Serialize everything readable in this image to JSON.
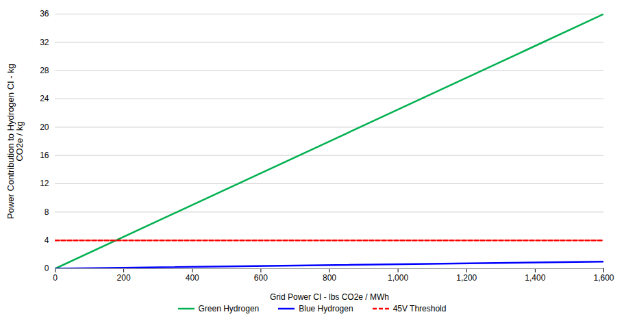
{
  "chart_data": {
    "type": "line",
    "x": [
      0,
      1600
    ],
    "xlabel": "Grid Power CI - lbs CO2e / MWh",
    "ylabel": "Power Contribution to Hydrogen CI - kg\nCO2e / kg",
    "series": [
      {
        "name": "Green Hydrogen",
        "color": "#00B050",
        "values": [
          0,
          36
        ],
        "line_style": "solid"
      },
      {
        "name": "Blue Hydrogen",
        "color": "#0000FF",
        "values": [
          0,
          1
        ],
        "line_style": "solid"
      },
      {
        "name": "45V Threshold",
        "color": "#FF0000",
        "values": [
          4,
          4
        ],
        "line_style": "dashed"
      }
    ],
    "xlim": [
      0,
      1600
    ],
    "ylim": [
      0,
      36
    ],
    "xticks": [
      0,
      200,
      400,
      600,
      800,
      {
        "value": 1000,
        "label": "1,000"
      },
      {
        "value": 1200,
        "label": "1,200"
      },
      {
        "value": 1400,
        "label": "1,400"
      },
      {
        "value": 1600,
        "label": "1,600"
      }
    ],
    "yticks": [
      0,
      4,
      8,
      12,
      16,
      20,
      24,
      28,
      32,
      36
    ],
    "grid": true,
    "legend": "bottom"
  }
}
